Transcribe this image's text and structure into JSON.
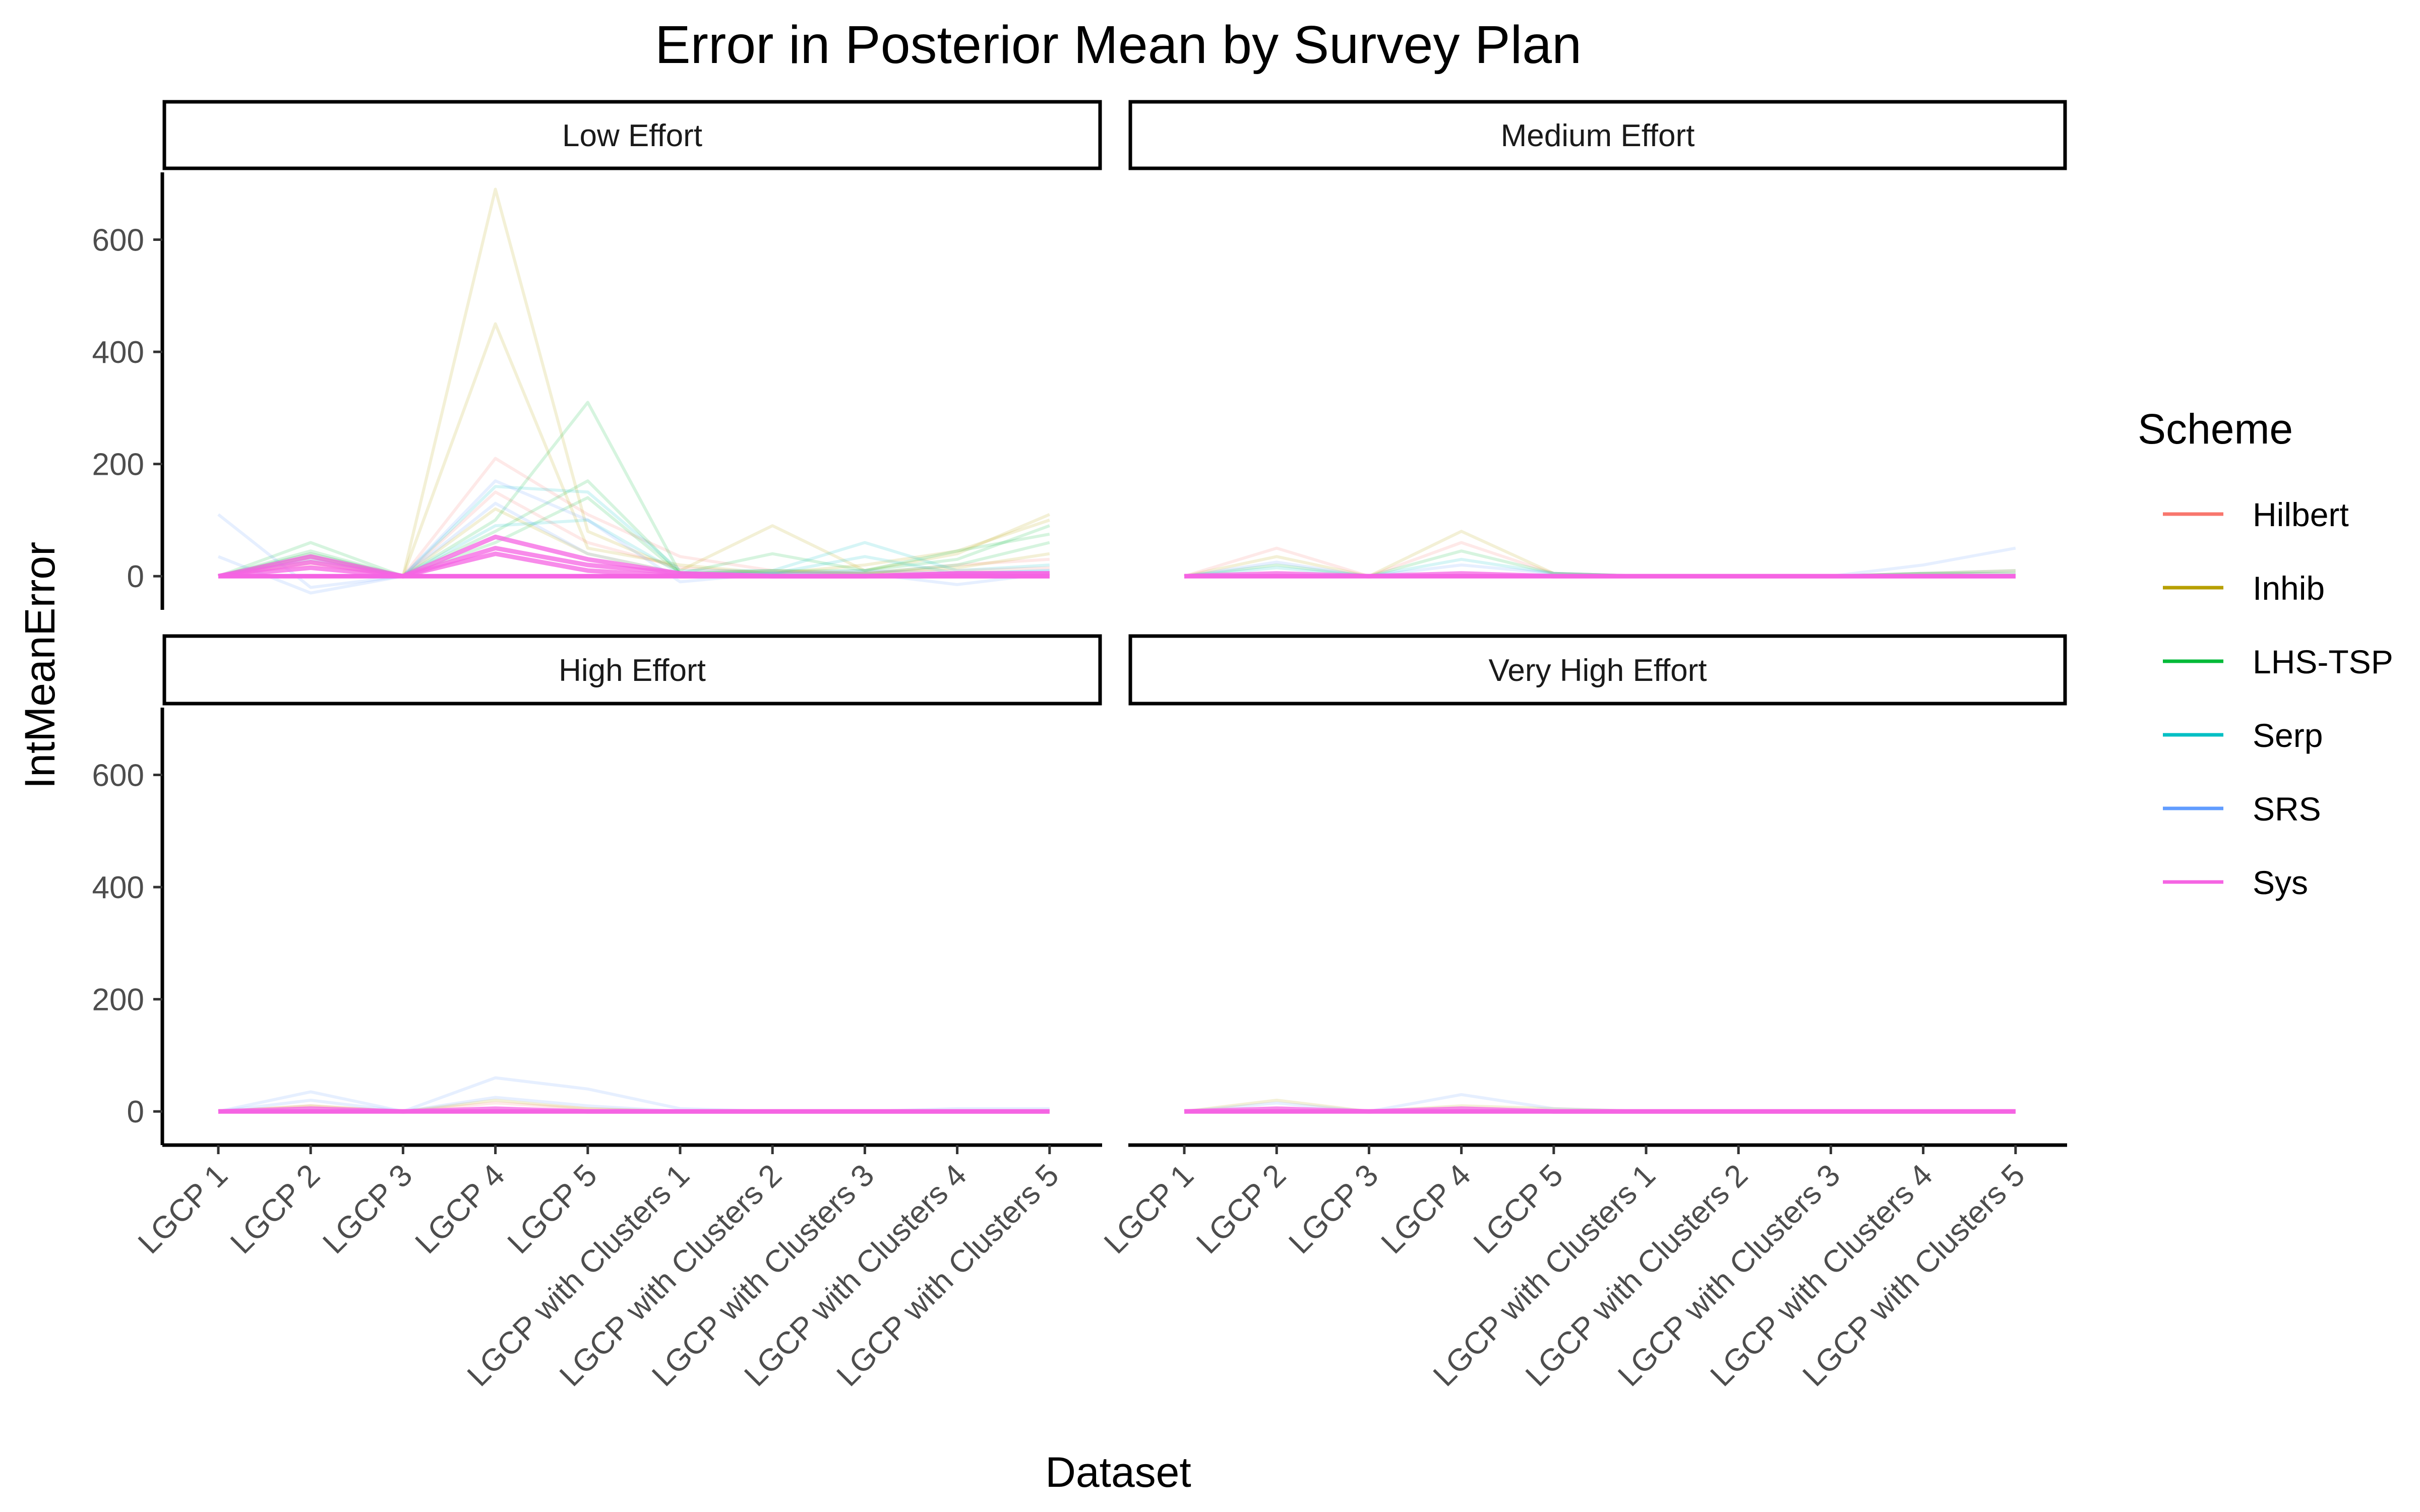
{
  "chart_data": {
    "type": "line",
    "title": "Error in Posterior Mean by Survey Plan",
    "xlabel": "Dataset",
    "ylabel": "IntMeanError",
    "ylim": [
      -60,
      720
    ],
    "yticks": [
      0,
      200,
      400,
      600
    ],
    "grid": false,
    "legend_position": "right",
    "legend_title": "Scheme",
    "categories": [
      "LGCP 1",
      "LGCP 2",
      "LGCP 3",
      "LGCP 4",
      "LGCP 5",
      "LGCP with Clusters 1",
      "LGCP with Clusters 2",
      "LGCP with Clusters 3",
      "LGCP with Clusters 4",
      "LGCP with Clusters 5"
    ],
    "schemes": [
      {
        "name": "Hilbert",
        "color": "#F8766D"
      },
      {
        "name": "Inhib",
        "color": "#B79F00"
      },
      {
        "name": "LHS-TSP",
        "color": "#00BA38"
      },
      {
        "name": "Serp",
        "color": "#00BFC4"
      },
      {
        "name": "SRS",
        "color": "#619CFF"
      },
      {
        "name": "Sys",
        "color": "#F564E3"
      }
    ],
    "panels": [
      {
        "label": "Low Effort",
        "series": [
          {
            "scheme": "Hilbert",
            "values": [
              0,
              30,
              0,
              210,
              110,
              35,
              10,
              5,
              20,
              30
            ]
          },
          {
            "scheme": "Hilbert",
            "values": [
              0,
              20,
              0,
              150,
              60,
              15,
              5,
              5,
              10,
              15
            ]
          },
          {
            "scheme": "Inhib",
            "values": [
              0,
              40,
              0,
              690,
              80,
              10,
              90,
              10,
              40,
              110
            ]
          },
          {
            "scheme": "Inhib",
            "values": [
              0,
              35,
              0,
              450,
              50,
              20,
              5,
              20,
              45,
              100
            ]
          },
          {
            "scheme": "Inhib",
            "values": [
              0,
              25,
              0,
              120,
              40,
              5,
              10,
              5,
              15,
              40
            ]
          },
          {
            "scheme": "LHS-TSP",
            "values": [
              0,
              60,
              0,
              100,
              310,
              5,
              40,
              10,
              45,
              75
            ]
          },
          {
            "scheme": "LHS-TSP",
            "values": [
              0,
              45,
              0,
              80,
              170,
              5,
              10,
              10,
              30,
              90
            ]
          },
          {
            "scheme": "LHS-TSP",
            "values": [
              0,
              35,
              0,
              60,
              140,
              5,
              5,
              5,
              20,
              60
            ]
          },
          {
            "scheme": "Serp",
            "values": [
              0,
              40,
              0,
              160,
              150,
              10,
              10,
              60,
              10,
              20
            ]
          },
          {
            "scheme": "Serp",
            "values": [
              0,
              30,
              0,
              90,
              100,
              5,
              5,
              35,
              5,
              10
            ]
          },
          {
            "scheme": "SRS",
            "values": [
              110,
              -20,
              0,
              170,
              100,
              -10,
              5,
              5,
              -15,
              5
            ]
          },
          {
            "scheme": "SRS",
            "values": [
              35,
              -30,
              0,
              130,
              40,
              5,
              5,
              10,
              5,
              10
            ]
          },
          {
            "scheme": "Sys",
            "values": [
              0,
              15,
              0,
              50,
              20,
              5,
              0,
              0,
              5,
              5
            ]
          },
          {
            "scheme": "Sys",
            "values": [
              0,
              25,
              0,
              70,
              30,
              5,
              0,
              0,
              5,
              5
            ]
          },
          {
            "scheme": "Sys",
            "values": [
              0,
              35,
              0,
              40,
              10,
              0,
              0,
              0,
              0,
              0
            ]
          }
        ]
      },
      {
        "label": "Medium Effort",
        "series": [
          {
            "scheme": "Hilbert",
            "values": [
              0,
              50,
              0,
              60,
              5,
              0,
              0,
              0,
              5,
              10
            ]
          },
          {
            "scheme": "Inhib",
            "values": [
              0,
              35,
              0,
              80,
              5,
              0,
              0,
              0,
              5,
              5
            ]
          },
          {
            "scheme": "LHS-TSP",
            "values": [
              0,
              20,
              0,
              45,
              5,
              0,
              0,
              0,
              5,
              10
            ]
          },
          {
            "scheme": "Serp",
            "values": [
              0,
              15,
              0,
              30,
              5,
              0,
              0,
              0,
              5,
              5
            ]
          },
          {
            "scheme": "SRS",
            "values": [
              0,
              25,
              0,
              20,
              5,
              0,
              0,
              0,
              20,
              50
            ]
          },
          {
            "scheme": "Sys",
            "values": [
              0,
              5,
              0,
              5,
              0,
              0,
              0,
              0,
              0,
              0
            ]
          }
        ]
      },
      {
        "label": "High Effort",
        "series": [
          {
            "scheme": "Hilbert",
            "values": [
              0,
              10,
              0,
              15,
              5,
              0,
              0,
              0,
              0,
              0
            ]
          },
          {
            "scheme": "Inhib",
            "values": [
              0,
              10,
              0,
              20,
              5,
              0,
              0,
              0,
              0,
              0
            ]
          },
          {
            "scheme": "SRS",
            "values": [
              0,
              35,
              0,
              60,
              40,
              5,
              0,
              0,
              5,
              5
            ]
          },
          {
            "scheme": "SRS",
            "values": [
              0,
              20,
              0,
              25,
              10,
              0,
              0,
              0,
              0,
              0
            ]
          },
          {
            "scheme": "Sys",
            "values": [
              0,
              5,
              0,
              5,
              0,
              0,
              0,
              0,
              0,
              0
            ]
          }
        ]
      },
      {
        "label": "Very High Effort",
        "series": [
          {
            "scheme": "Inhib",
            "values": [
              0,
              20,
              0,
              10,
              5,
              0,
              0,
              0,
              0,
              0
            ]
          },
          {
            "scheme": "SRS",
            "values": [
              0,
              15,
              0,
              30,
              5,
              0,
              0,
              0,
              0,
              0
            ]
          },
          {
            "scheme": "Sys",
            "values": [
              0,
              5,
              0,
              5,
              0,
              0,
              0,
              0,
              0,
              0
            ]
          }
        ]
      }
    ]
  }
}
